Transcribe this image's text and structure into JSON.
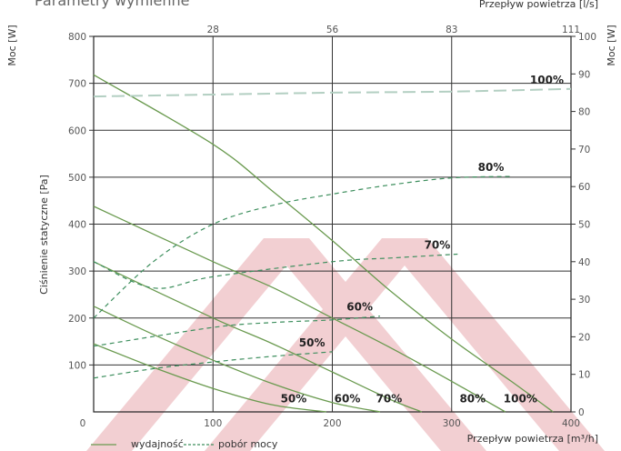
{
  "chart_data": {
    "type": "line",
    "title": "Parametry wymienne",
    "xlabel": "Przepływ powietrza [m³/h]",
    "x2label": "Przepływ powietrza [l/s]",
    "ylabel": "Ciśnienie statyczne [Pa]",
    "y2label": "Moc [W]",
    "y2label_left": "Moc [W]",
    "xlim": [
      0,
      400
    ],
    "ylim": [
      0,
      800
    ],
    "y2lim": [
      0,
      100
    ],
    "x_ticks": [
      "0",
      "100",
      "200",
      "300",
      "400"
    ],
    "x2_ticks": [
      "28",
      "56",
      "83",
      "111"
    ],
    "y_ticks": [
      "100",
      "200",
      "300",
      "400",
      "500",
      "600",
      "700",
      "800"
    ],
    "y2_ticks": [
      "0",
      "10",
      "20",
      "30",
      "40",
      "50",
      "60",
      "70",
      "80",
      "90",
      "100"
    ],
    "grid": true,
    "legend": {
      "position": "bottom-left",
      "performance_label": "wydajność",
      "power_label": "pobór mocy"
    },
    "performance_series": [
      {
        "label": "50%",
        "points": [
          [
            0,
            145
          ],
          [
            50,
            95
          ],
          [
            100,
            50
          ],
          [
            150,
            15
          ],
          [
            195,
            0
          ]
        ]
      },
      {
        "label": "60%",
        "points": [
          [
            0,
            225
          ],
          [
            50,
            165
          ],
          [
            100,
            110
          ],
          [
            150,
            60
          ],
          [
            200,
            20
          ],
          [
            240,
            0
          ]
        ]
      },
      {
        "label": "70%",
        "points": [
          [
            0,
            320
          ],
          [
            100,
            200
          ],
          [
            150,
            145
          ],
          [
            200,
            85
          ],
          [
            250,
            25
          ],
          [
            275,
            0
          ]
        ]
      },
      {
        "label": "80%",
        "points": [
          [
            0,
            438
          ],
          [
            100,
            320
          ],
          [
            150,
            265
          ],
          [
            200,
            200
          ],
          [
            250,
            135
          ],
          [
            300,
            65
          ],
          [
            345,
            0
          ]
        ]
      },
      {
        "label": "100%",
        "points": [
          [
            0,
            718
          ],
          [
            100,
            570
          ],
          [
            150,
            470
          ],
          [
            200,
            365
          ],
          [
            250,
            255
          ],
          [
            300,
            155
          ],
          [
            350,
            65
          ],
          [
            385,
            0
          ]
        ]
      }
    ],
    "power_series": [
      {
        "label": "50%",
        "points": [
          [
            0,
            9
          ],
          [
            50,
            11.5
          ],
          [
            100,
            13.3
          ],
          [
            150,
            14.8
          ],
          [
            200,
            16
          ]
        ]
      },
      {
        "label": "60%",
        "points": [
          [
            0,
            17.5
          ],
          [
            100,
            22.5
          ],
          [
            150,
            23.8
          ],
          [
            200,
            24.5
          ],
          [
            240,
            25.5
          ]
        ]
      },
      {
        "label": "70%",
        "points": [
          [
            0,
            40
          ],
          [
            50,
            33
          ],
          [
            100,
            36
          ],
          [
            200,
            40
          ],
          [
            250,
            41
          ],
          [
            305,
            42
          ]
        ]
      },
      {
        "label": "80%",
        "points": [
          [
            0,
            25
          ],
          [
            50,
            40
          ],
          [
            100,
            50
          ],
          [
            150,
            55
          ],
          [
            200,
            58
          ],
          [
            250,
            60.5
          ],
          [
            300,
            62.3
          ],
          [
            350,
            62.7
          ]
        ]
      },
      {
        "label": "100%",
        "points": [
          [
            0,
            84
          ],
          [
            100,
            84.5
          ],
          [
            200,
            85
          ],
          [
            300,
            85.3
          ],
          [
            400,
            86
          ]
        ]
      }
    ],
    "series_colors": {
      "performance": "#6a9a4f",
      "power": "#3e8f5e",
      "power_100": "#b3cfc2",
      "background_watermark": "#f2cfd2"
    }
  }
}
